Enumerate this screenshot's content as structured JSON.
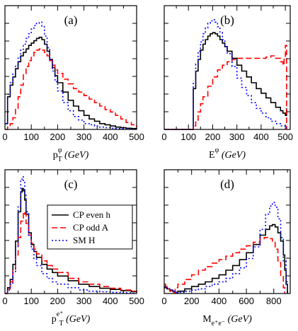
{
  "colors": {
    "cp_even": "#000000",
    "cp_odd": "#ff0000",
    "sm": "#0000ff"
  },
  "chart_data": [
    {
      "type": "line",
      "panel_label": "(a)",
      "xlabel_main": "p",
      "xlabel_sub": "T",
      "xlabel_sup": "φ",
      "xlabel_unit": " (GeV)",
      "xlim": [
        0,
        500
      ],
      "ylim": [
        0,
        1
      ],
      "xticks": [
        0,
        100,
        200,
        300,
        400,
        500
      ],
      "series": [
        {
          "key": "cp_even",
          "x": [
            0,
            10,
            20,
            30,
            40,
            50,
            60,
            70,
            80,
            90,
            100,
            110,
            120,
            130,
            140,
            150,
            160,
            170,
            180,
            190,
            200,
            220,
            240,
            260,
            280,
            300,
            320,
            340,
            360,
            380,
            400,
            420,
            440,
            460,
            480,
            500
          ],
          "y": [
            0.05,
            0.28,
            0.38,
            0.45,
            0.52,
            0.58,
            0.63,
            0.66,
            0.69,
            0.72,
            0.74,
            0.76,
            0.78,
            0.79,
            0.77,
            0.73,
            0.67,
            0.6,
            0.53,
            0.46,
            0.4,
            0.32,
            0.25,
            0.2,
            0.16,
            0.12,
            0.09,
            0.07,
            0.05,
            0.04,
            0.03,
            0.02,
            0.015,
            0.01,
            0.008,
            0.005
          ]
        },
        {
          "key": "cp_odd",
          "x": [
            0,
            10,
            20,
            30,
            40,
            50,
            60,
            70,
            80,
            90,
            100,
            110,
            120,
            130,
            140,
            150,
            160,
            170,
            180,
            190,
            200,
            220,
            240,
            260,
            280,
            300,
            320,
            340,
            360,
            380,
            400,
            420,
            440,
            460,
            480,
            500
          ],
          "y": [
            0.0,
            0.02,
            0.05,
            0.1,
            0.18,
            0.28,
            0.38,
            0.47,
            0.54,
            0.59,
            0.63,
            0.66,
            0.68,
            0.69,
            0.68,
            0.66,
            0.63,
            0.59,
            0.55,
            0.51,
            0.48,
            0.43,
            0.39,
            0.35,
            0.32,
            0.29,
            0.26,
            0.23,
            0.2,
            0.17,
            0.15,
            0.12,
            0.09,
            0.06,
            0.04,
            0.02
          ]
        },
        {
          "key": "sm",
          "x": [
            0,
            10,
            20,
            30,
            40,
            50,
            60,
            70,
            80,
            90,
            100,
            110,
            120,
            130,
            140,
            150,
            160,
            170,
            180,
            190,
            200,
            220,
            240,
            260,
            280,
            300,
            320,
            340,
            360,
            380,
            400,
            420,
            440,
            460,
            480,
            500
          ],
          "y": [
            0.05,
            0.3,
            0.4,
            0.48,
            0.55,
            0.62,
            0.68,
            0.73,
            0.78,
            0.82,
            0.86,
            0.89,
            0.91,
            0.92,
            0.88,
            0.8,
            0.7,
            0.6,
            0.5,
            0.41,
            0.33,
            0.23,
            0.16,
            0.11,
            0.08,
            0.05,
            0.04,
            0.03,
            0.02,
            0.015,
            0.01,
            0.008,
            0.005,
            0.003,
            0.002,
            0.001
          ]
        }
      ]
    },
    {
      "type": "line",
      "panel_label": "(b)",
      "xlabel_main": "E",
      "xlabel_sub": "",
      "xlabel_sup": "φ",
      "xlabel_unit": " (GeV)",
      "xlim": [
        0,
        520
      ],
      "ylim": [
        0,
        1
      ],
      "xticks": [
        0,
        100,
        200,
        300,
        400,
        500
      ],
      "series": [
        {
          "key": "cp_even",
          "x": [
            0,
            110,
            120,
            130,
            140,
            150,
            160,
            170,
            180,
            190,
            200,
            210,
            220,
            230,
            240,
            250,
            260,
            280,
            300,
            320,
            340,
            360,
            380,
            400,
            420,
            440,
            460,
            480,
            490,
            500,
            505
          ],
          "y": [
            0,
            0,
            0.35,
            0.5,
            0.6,
            0.68,
            0.73,
            0.77,
            0.8,
            0.82,
            0.83,
            0.82,
            0.8,
            0.77,
            0.74,
            0.71,
            0.67,
            0.61,
            0.55,
            0.5,
            0.45,
            0.4,
            0.35,
            0.31,
            0.27,
            0.23,
            0.19,
            0.16,
            0.14,
            0.12,
            0.18
          ]
        },
        {
          "key": "cp_odd",
          "x": [
            0,
            110,
            120,
            130,
            140,
            150,
            160,
            180,
            200,
            220,
            240,
            260,
            280,
            300,
            320,
            340,
            360,
            380,
            400,
            420,
            440,
            460,
            480,
            490,
            495,
            500,
            505
          ],
          "y": [
            0,
            0,
            0.03,
            0.08,
            0.15,
            0.22,
            0.28,
            0.37,
            0.45,
            0.51,
            0.55,
            0.58,
            0.6,
            0.61,
            0.61,
            0.61,
            0.61,
            0.61,
            0.61,
            0.62,
            0.63,
            0.61,
            0.58,
            0.55,
            0.62,
            0.72,
            0.0
          ]
        },
        {
          "key": "sm",
          "x": [
            0,
            110,
            120,
            130,
            140,
            150,
            160,
            170,
            180,
            190,
            200,
            210,
            220,
            230,
            240,
            250,
            260,
            280,
            300,
            320,
            340,
            360,
            380,
            400,
            420,
            440,
            460,
            480,
            500,
            505
          ],
          "y": [
            0,
            0,
            0.4,
            0.56,
            0.67,
            0.75,
            0.82,
            0.87,
            0.91,
            0.93,
            0.94,
            0.92,
            0.88,
            0.83,
            0.77,
            0.71,
            0.65,
            0.54,
            0.44,
            0.36,
            0.29,
            0.23,
            0.18,
            0.14,
            0.1,
            0.07,
            0.05,
            0.03,
            0.02,
            0.01
          ]
        }
      ]
    },
    {
      "type": "line",
      "panel_label": "(c)",
      "xlabel_main": "p",
      "xlabel_sub": "T",
      "xlabel_sup": "e⁺",
      "xlabel_unit": " (GeV)",
      "xlim": [
        0,
        500
      ],
      "ylim": [
        0,
        1
      ],
      "xticks": [
        0,
        100,
        200,
        300,
        400,
        500
      ],
      "legend": {
        "placement": "top-right",
        "entries": [
          {
            "key": "cp_even",
            "label": "CP even h"
          },
          {
            "key": "cp_odd",
            "label": "CP odd A"
          },
          {
            "key": "sm",
            "label": "SM H"
          }
        ]
      },
      "series": [
        {
          "key": "cp_even",
          "x": [
            0,
            10,
            20,
            30,
            40,
            50,
            60,
            65,
            70,
            75,
            80,
            90,
            100,
            110,
            120,
            140,
            160,
            180,
            200,
            240,
            280,
            320,
            360,
            400,
            440,
            480,
            500
          ],
          "y": [
            0.0,
            0.05,
            0.12,
            0.25,
            0.45,
            0.7,
            0.87,
            0.9,
            0.88,
            0.8,
            0.68,
            0.52,
            0.42,
            0.36,
            0.31,
            0.25,
            0.21,
            0.18,
            0.15,
            0.11,
            0.08,
            0.06,
            0.045,
            0.035,
            0.025,
            0.015,
            0.01
          ]
        },
        {
          "key": "cp_odd",
          "x": [
            0,
            10,
            20,
            30,
            40,
            50,
            60,
            70,
            75,
            80,
            90,
            100,
            110,
            120,
            140,
            160,
            180,
            200,
            240,
            280,
            320,
            360,
            400,
            440,
            480,
            500
          ],
          "y": [
            0.0,
            0.04,
            0.1,
            0.2,
            0.33,
            0.48,
            0.62,
            0.7,
            0.68,
            0.6,
            0.5,
            0.43,
            0.38,
            0.34,
            0.28,
            0.24,
            0.21,
            0.18,
            0.13,
            0.1,
            0.08,
            0.06,
            0.045,
            0.03,
            0.02,
            0.015
          ]
        },
        {
          "key": "sm",
          "x": [
            0,
            10,
            20,
            30,
            40,
            50,
            60,
            65,
            70,
            75,
            80,
            90,
            100,
            110,
            120,
            140,
            160,
            180,
            200,
            240,
            280,
            320,
            360,
            400,
            440,
            480,
            500
          ],
          "y": [
            0.0,
            0.03,
            0.08,
            0.18,
            0.4,
            0.75,
            0.97,
            1.0,
            0.96,
            0.85,
            0.7,
            0.5,
            0.38,
            0.3,
            0.24,
            0.17,
            0.13,
            0.1,
            0.08,
            0.05,
            0.03,
            0.02,
            0.015,
            0.01,
            0.006,
            0.003,
            0.002
          ]
        }
      ]
    },
    {
      "type": "line",
      "panel_label": "(d)",
      "xlabel_main": "M",
      "xlabel_sub": "e⁺e⁻",
      "xlabel_sup": "",
      "xlabel_unit": " (GeV)",
      "xlim": [
        0,
        920
      ],
      "ylim": [
        0,
        1
      ],
      "xticks": [
        0,
        200,
        400,
        600,
        800
      ],
      "series": [
        {
          "key": "cp_even",
          "x": [
            0,
            20,
            40,
            60,
            80,
            100,
            150,
            200,
            250,
            300,
            350,
            400,
            450,
            500,
            550,
            600,
            650,
            700,
            740,
            770,
            790,
            810,
            830,
            850,
            870,
            880,
            890,
            900
          ],
          "y": [
            0.05,
            0.04,
            0.03,
            0.02,
            0.01,
            0.02,
            0.04,
            0.06,
            0.08,
            0.1,
            0.13,
            0.16,
            0.2,
            0.24,
            0.29,
            0.35,
            0.42,
            0.5,
            0.55,
            0.58,
            0.59,
            0.57,
            0.52,
            0.45,
            0.33,
            0.2,
            0.08,
            0.0
          ]
        },
        {
          "key": "cp_odd",
          "x": [
            0,
            10,
            20,
            40,
            60,
            80,
            100,
            150,
            200,
            250,
            300,
            350,
            400,
            450,
            500,
            550,
            600,
            650,
            700,
            730,
            750,
            770,
            790,
            810,
            830,
            850,
            870,
            880
          ],
          "y": [
            0.08,
            0.06,
            0.04,
            0.02,
            0.01,
            0.05,
            0.08,
            0.12,
            0.16,
            0.2,
            0.23,
            0.26,
            0.29,
            0.32,
            0.35,
            0.38,
            0.41,
            0.44,
            0.47,
            0.48,
            0.48,
            0.47,
            0.44,
            0.38,
            0.28,
            0.15,
            0.05,
            0.0
          ]
        },
        {
          "key": "sm",
          "x": [
            0,
            20,
            40,
            60,
            80,
            100,
            150,
            200,
            250,
            300,
            350,
            400,
            450,
            500,
            550,
            600,
            650,
            700,
            740,
            770,
            790,
            810,
            830,
            850,
            870,
            890,
            900
          ],
          "y": [
            0.06,
            0.05,
            0.03,
            0.02,
            0.01,
            0.01,
            0.02,
            0.03,
            0.04,
            0.06,
            0.08,
            0.1,
            0.13,
            0.17,
            0.22,
            0.3,
            0.4,
            0.55,
            0.68,
            0.75,
            0.78,
            0.74,
            0.64,
            0.48,
            0.28,
            0.1,
            0.0
          ]
        }
      ]
    }
  ]
}
